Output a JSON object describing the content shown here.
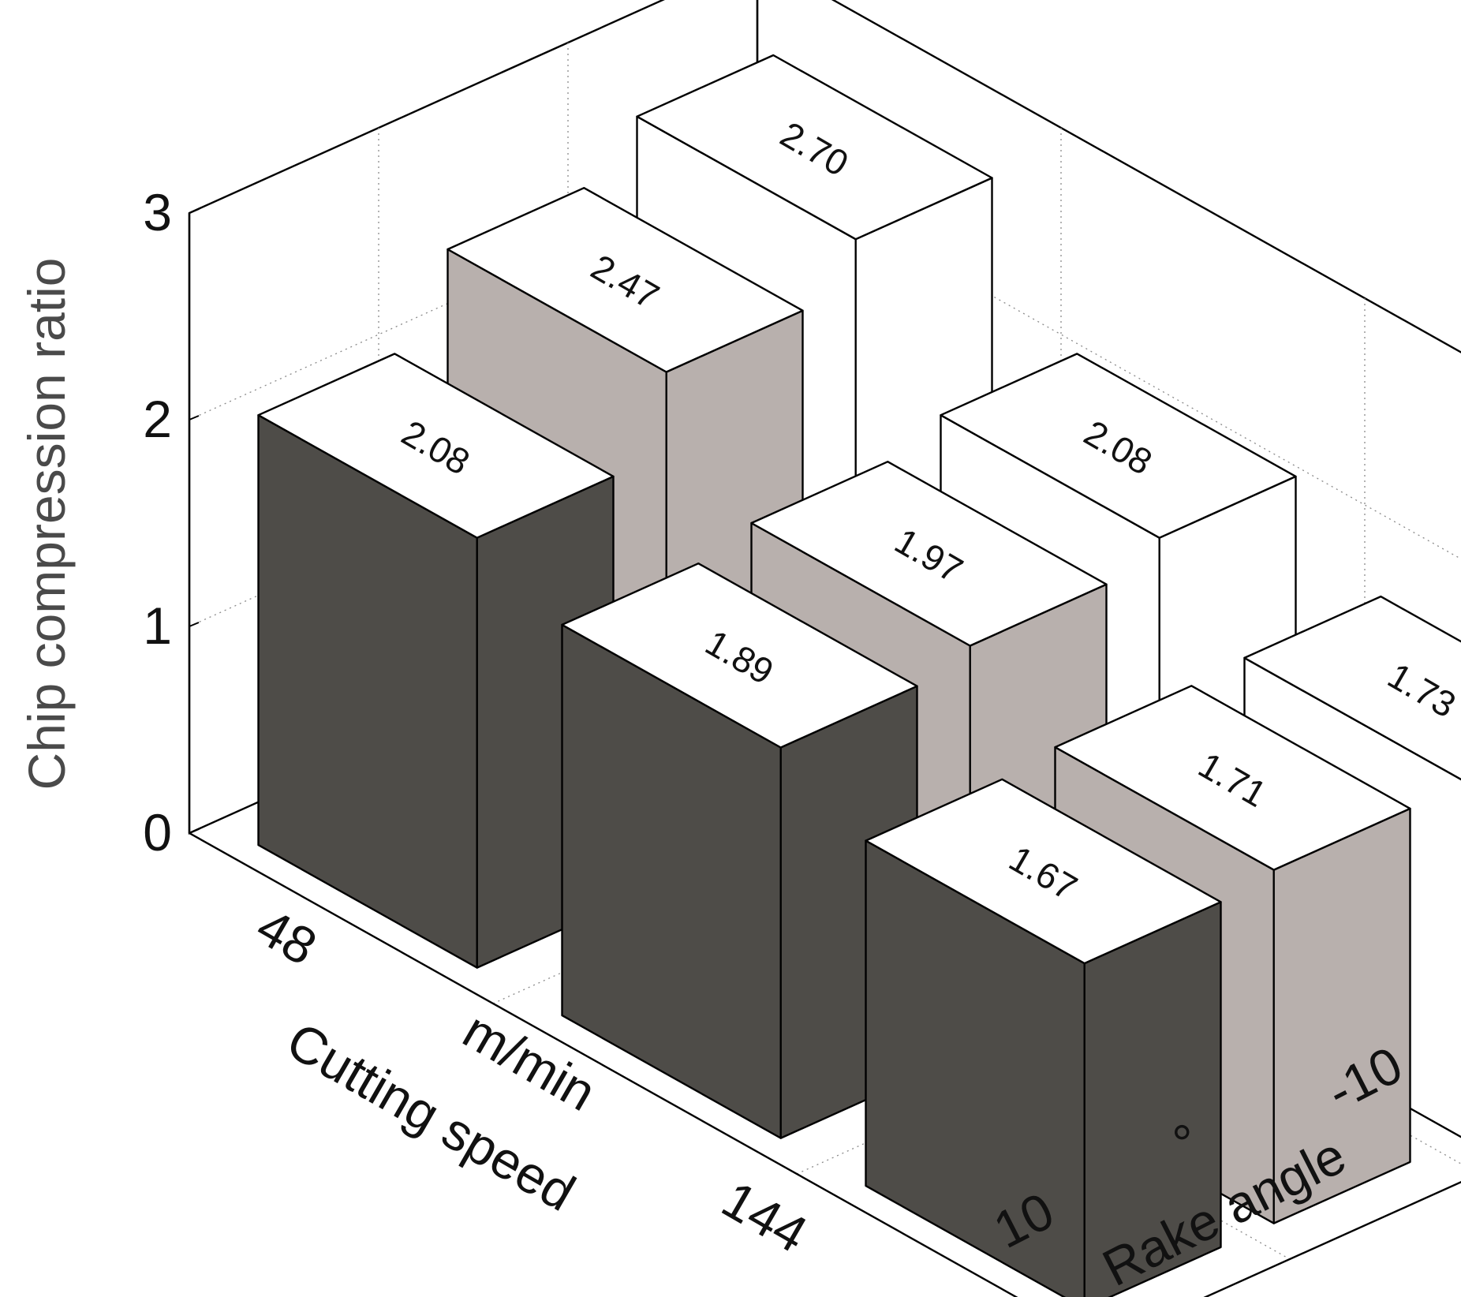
{
  "chart_data": {
    "type": "bar3d",
    "ylabel": "Chip compression ratio",
    "zlim": [
      0,
      3
    ],
    "zticks": [
      "0",
      "1",
      "2",
      "3"
    ],
    "x_axis": {
      "label": "Cutting speed",
      "unit_label": "m/min",
      "tick_labels": [
        "48",
        "144"
      ]
    },
    "y_axis": {
      "label": "Rake angle",
      "unit_label": "°",
      "tick_labels": [
        "10",
        "-10"
      ]
    },
    "series": [
      {
        "name": "Rake angle 10°",
        "color": "#4e4c48",
        "cutting_speeds": [
          "48",
          "96",
          "144"
        ],
        "values": [
          2.08,
          1.89,
          1.67
        ]
      },
      {
        "name": "Rake angle 0°",
        "color": "#b8b0ad",
        "cutting_speeds": [
          "48",
          "96",
          "144"
        ],
        "values": [
          2.47,
          1.97,
          1.71
        ]
      },
      {
        "name": "Rake angle -10°",
        "color": "#ffffff",
        "cutting_speeds": [
          "48",
          "96",
          "144"
        ],
        "values": [
          2.7,
          2.08,
          1.73
        ]
      }
    ],
    "value_labels": [
      [
        "2.08",
        "1.89",
        "1.67"
      ],
      [
        "2.47",
        "1.97",
        "1.71"
      ],
      [
        "2.70",
        "2.08",
        "1.73"
      ]
    ],
    "grid": true
  }
}
